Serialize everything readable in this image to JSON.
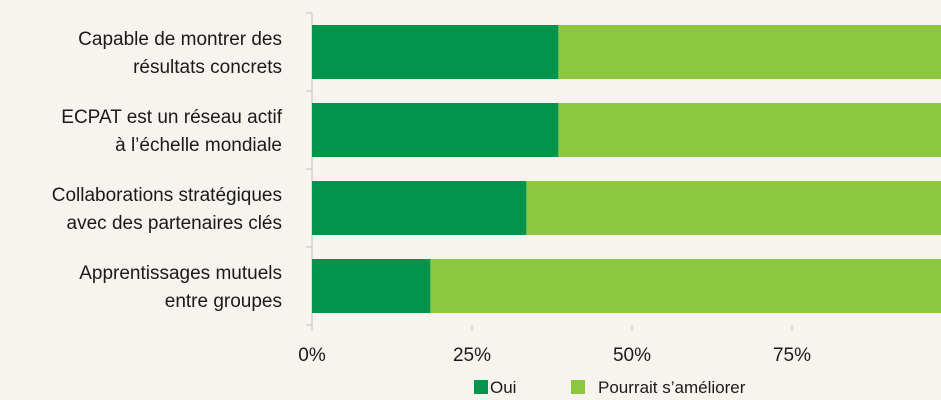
{
  "chart_data": {
    "type": "bar",
    "orientation": "horizontal",
    "stacked": true,
    "categories": [
      [
        "Capable de montrer des",
        "résultats concrets"
      ],
      [
        "ECPAT est un réseau actif",
        "à l’échelle mondiale"
      ],
      [
        "Collaborations stratégiques",
        "avec des partenaires clés"
      ],
      [
        "Apprentissages mutuels",
        "entre groupes"
      ]
    ],
    "series": [
      {
        "name": "Oui",
        "color": "#00954a",
        "values": [
          38.5,
          38.5,
          33.5,
          18.5
        ]
      },
      {
        "name": "Pourrait s’améliorer",
        "color": "#8dc63f",
        "values": [
          61.5,
          61.5,
          66.5,
          81.5
        ]
      }
    ],
    "xlim": [
      0,
      100
    ],
    "xticks": [
      0,
      25,
      50,
      75
    ],
    "xtick_labels": [
      "0%",
      "25%",
      "50%",
      "75%"
    ],
    "legend_position": "bottom",
    "grid": false,
    "axis_color": "#bfbfbf"
  }
}
